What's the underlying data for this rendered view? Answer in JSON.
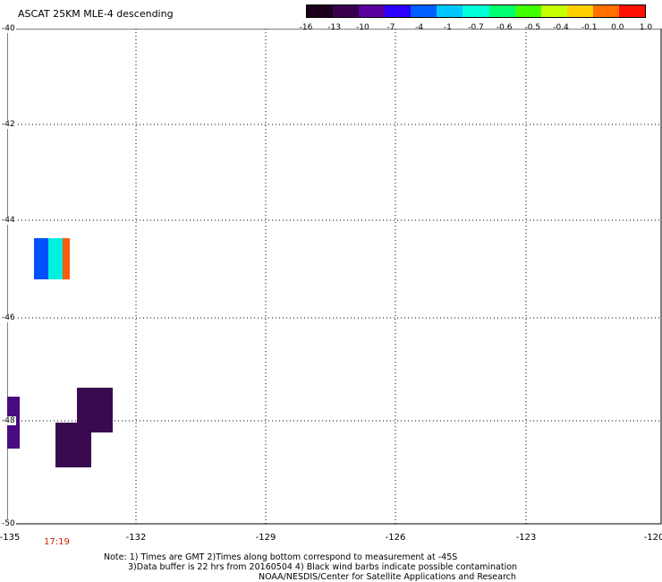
{
  "title": "ASCAT 25KM MLE-4 descending",
  "colorbar": {
    "labels": [
      "-16",
      "-13",
      "-10",
      "-7",
      "-4",
      "-1",
      "-0.7",
      "-0.6",
      "-0.5",
      "-0.4",
      "-0.1",
      "0.0",
      "1.0"
    ],
    "colors": [
      "#1a001a",
      "#3a0050",
      "#5a00a0",
      "#2a00ff",
      "#0060ff",
      "#00c8ff",
      "#00ffd8",
      "#00ff70",
      "#40ff00",
      "#c8ff00",
      "#ffd000",
      "#ff7000",
      "#ff1000"
    ]
  },
  "y_axis": {
    "labels": [
      "-40",
      "-42",
      "-44",
      "-46",
      "-48",
      "-50"
    ]
  },
  "x_axis": {
    "labels": [
      "-135",
      "-132",
      "-129",
      "-126",
      "-123",
      "-120"
    ]
  },
  "time_label": "17:19",
  "notes": {
    "line1": "Note: 1) Times are GMT 2)Times along bottom correspond to measurement at -45S",
    "line2": "3)Data buffer is 22 hrs from 20160504 4) Black wind barbs indicate possible contamination",
    "line3": "NOAA/NESDIS/Center for Satellite Applications and Research"
  },
  "data_cells": [
    {
      "name": "data-cell-blue",
      "color": "#0050ff"
    },
    {
      "name": "data-cell-cyan",
      "color": "#00f0e0"
    },
    {
      "name": "data-cell-orange",
      "color": "#ff5a10"
    },
    {
      "name": "data-cell-purple-left",
      "color": "#4a0a80"
    },
    {
      "name": "data-cell-purple-upper",
      "color": "#3a0a50"
    },
    {
      "name": "data-cell-purple-lower",
      "color": "#3a0a50"
    }
  ]
}
